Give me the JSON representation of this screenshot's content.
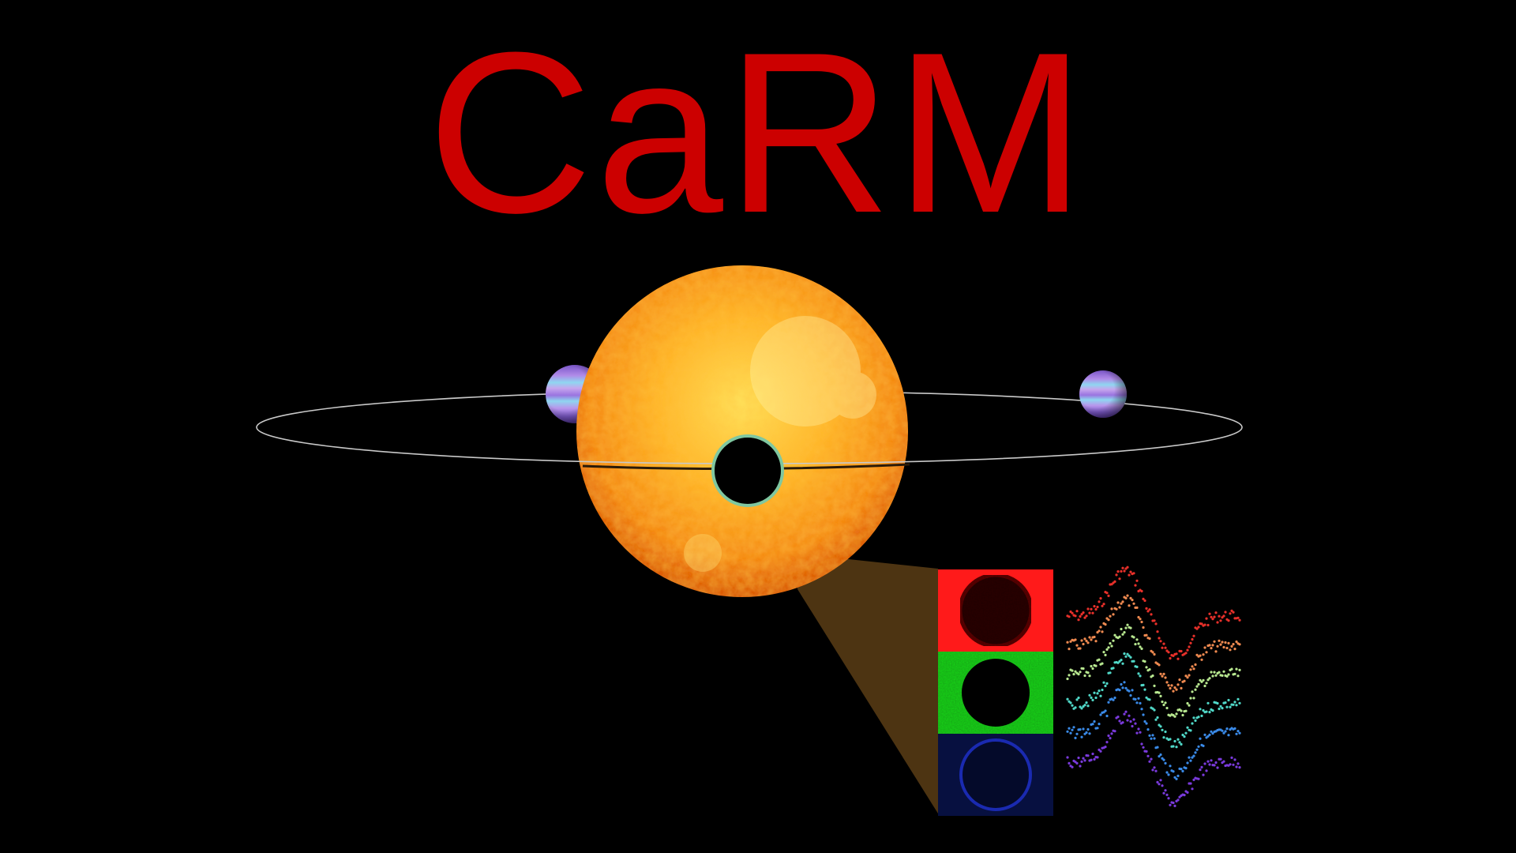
{
  "title": "CaRM",
  "colors": {
    "background": "#000000",
    "title": "#cc0000",
    "star_core": "#ffd23a",
    "star_edge": "#e0600a",
    "planet": "#a07ae0",
    "planet_band": "#8fd6f0",
    "zoom_cone": "#4d3412",
    "orbit": "#c8c8c8",
    "panel_red": "#ff1a1a",
    "panel_green": "#1ccc1c",
    "panel_blue": "#0b1660"
  },
  "scene": {
    "star": {
      "label": "star",
      "texture": "granulated-sun"
    },
    "orbit": {
      "label": "planet-orbit"
    },
    "planets": [
      "planet-left",
      "planet-right"
    ],
    "transiting_planet": "transit-shadow",
    "spectral_panels": [
      "red",
      "green",
      "blue"
    ],
    "rm_curves": {
      "series_colors": [
        "#e8302a",
        "#f08a50",
        "#b8e890",
        "#50d8c8",
        "#3a8ae8",
        "#7a3adc"
      ]
    }
  }
}
